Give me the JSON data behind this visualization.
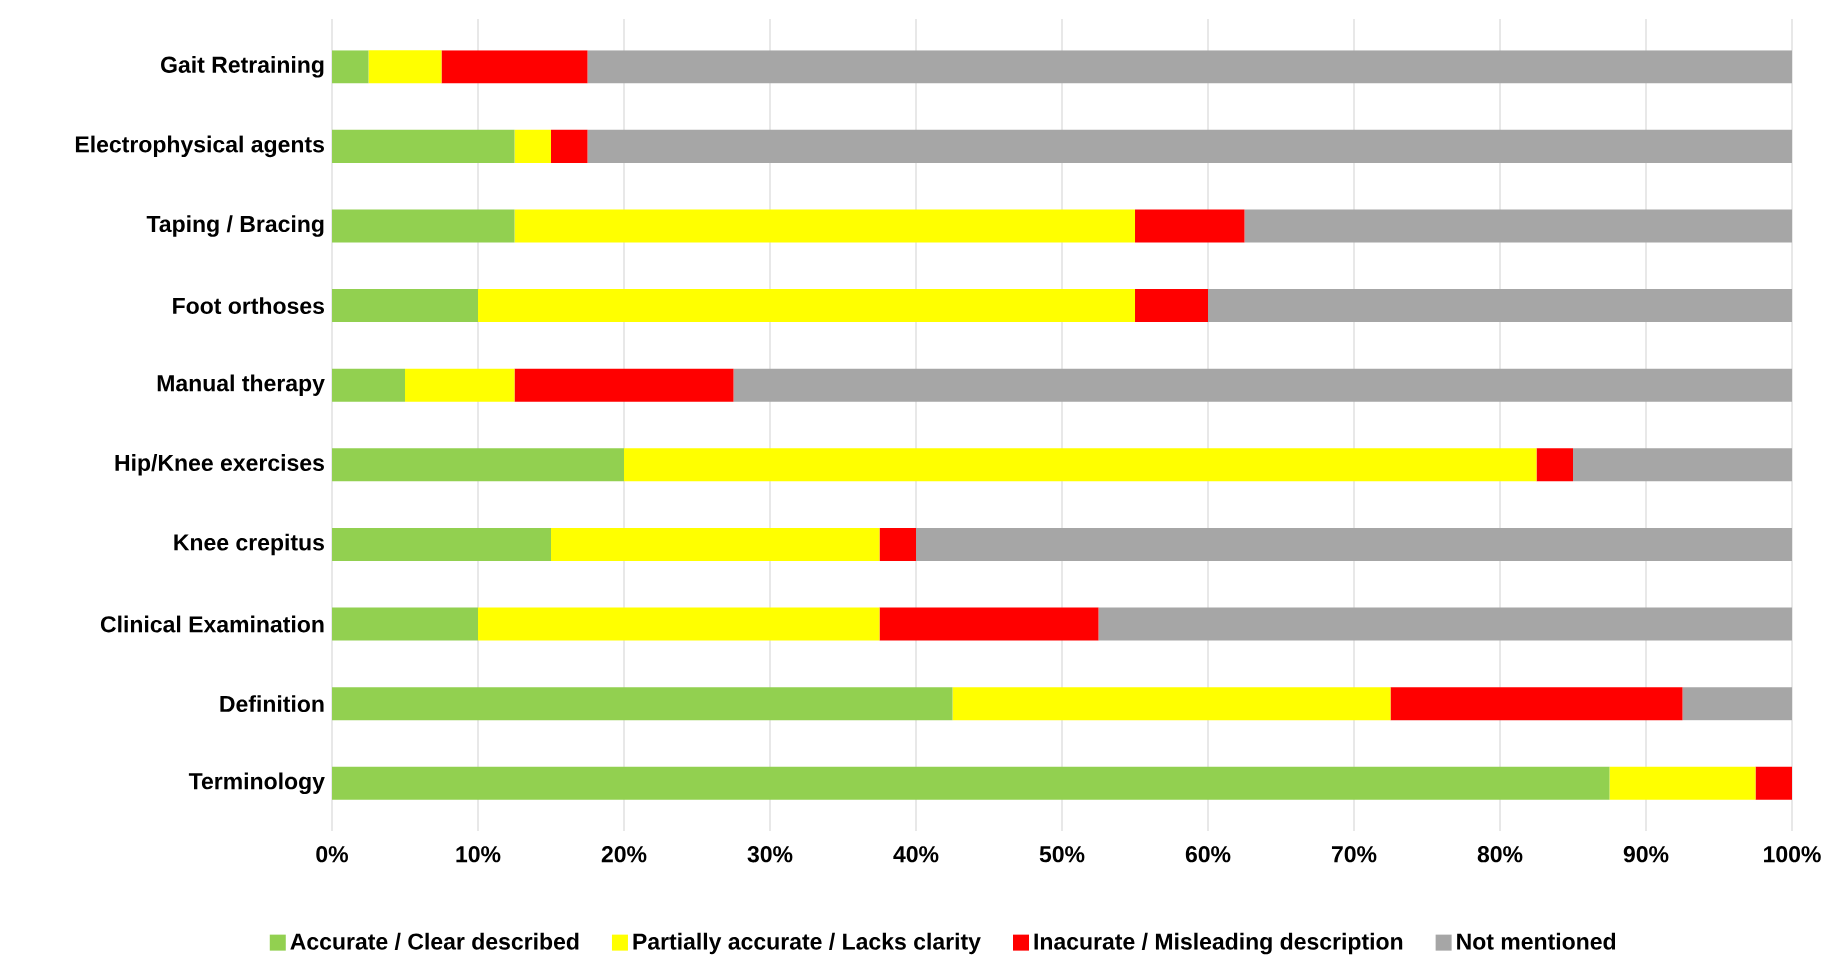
{
  "chart_data": {
    "type": "bar",
    "orientation": "horizontal",
    "stacked": true,
    "categories": [
      "Gait Retraining",
      "Electrophysical agents",
      "Taping / Bracing",
      "Foot orthoses",
      "Manual therapy",
      "Hip/Knee exercises",
      "Knee crepitus",
      "Clinical Examination",
      "Definition",
      "Terminology"
    ],
    "series": [
      {
        "name": "Accurate / Clear described",
        "color": "#92d050",
        "values": [
          2.5,
          12.5,
          12.5,
          10,
          5,
          20,
          15,
          10,
          42.5,
          87.5
        ]
      },
      {
        "name": "Partially accurate / Lacks clarity",
        "color": "#ffff00",
        "values": [
          5,
          2.5,
          42.5,
          45,
          7.5,
          62.5,
          22.5,
          27.5,
          30,
          10
        ]
      },
      {
        "name": "Inacurate / Misleading description",
        "color": "#ff0000",
        "values": [
          10,
          2.5,
          7.5,
          5,
          15,
          2.5,
          2.5,
          15,
          20,
          2.5
        ]
      },
      {
        "name": "Not mentioned",
        "color": "#a6a6a6",
        "values": [
          82.5,
          82.5,
          37.5,
          40,
          72.5,
          15,
          60,
          47.5,
          7.5,
          0
        ]
      }
    ],
    "xlim": [
      0,
      100
    ],
    "xticks": [
      {
        "value": 0,
        "label": "0%"
      },
      {
        "value": 10,
        "label": "10%"
      },
      {
        "value": 20,
        "label": "20%"
      },
      {
        "value": 30,
        "label": "30%"
      },
      {
        "value": 40,
        "label": "40%"
      },
      {
        "value": 50,
        "label": "50%"
      },
      {
        "value": 60,
        "label": "60%"
      },
      {
        "value": 70,
        "label": "70%"
      },
      {
        "value": 80,
        "label": "80%"
      },
      {
        "value": 90,
        "label": "90%"
      },
      {
        "value": 100,
        "label": "100%"
      }
    ],
    "grid": "x",
    "legend": "bottom"
  }
}
